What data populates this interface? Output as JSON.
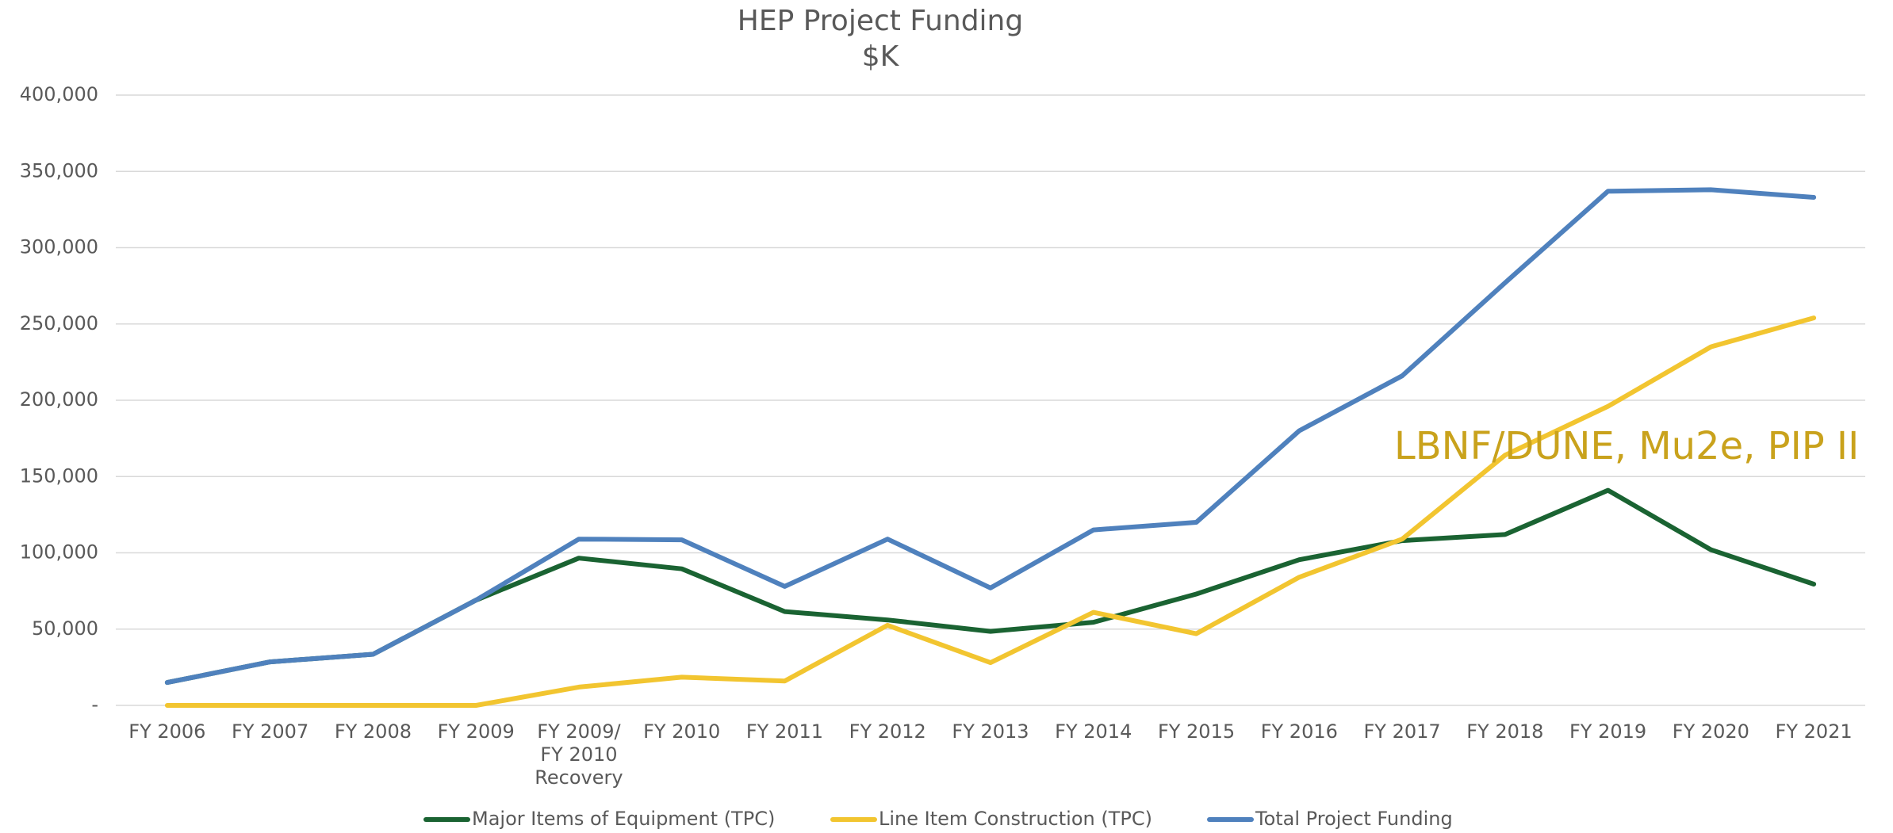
{
  "chart_data": {
    "type": "line",
    "title": "HEP Project Funding",
    "subtitle": "$K",
    "categories": [
      "FY 2006",
      "FY 2007",
      "FY 2008",
      "FY 2009",
      "FY 2009/ FY 2010 Recovery",
      "FY 2010",
      "FY 2011",
      "FY 2012",
      "FY 2013",
      "FY 2014",
      "FY 2015",
      "FY 2016",
      "FY 2017",
      "FY 2018",
      "FY 2019",
      "FY 2020",
      "FY 2021"
    ],
    "series": [
      {
        "name": "Major Items of Equipment (TPC)",
        "color": "#1a6332",
        "values": [
          15000,
          28500,
          33500,
          69000,
          96500,
          89500,
          61500,
          56000,
          48500,
          54500,
          73000,
          95500,
          108000,
          112000,
          141000,
          102000,
          79500
        ]
      },
      {
        "name": "Line Item Construction (TPC)",
        "color": "#f2c530",
        "values": [
          0,
          0,
          0,
          0,
          12000,
          18500,
          16000,
          52500,
          28000,
          61000,
          47000,
          84000,
          109000,
          164000,
          196000,
          235000,
          254000
        ]
      },
      {
        "name": "Total Project Funding",
        "color": "#4f81bd",
        "values": [
          15000,
          28500,
          33500,
          69000,
          109000,
          108500,
          78000,
          109000,
          77000,
          115000,
          120000,
          180000,
          216000,
          277000,
          337000,
          338000,
          333000
        ]
      }
    ],
    "ylim": [
      0,
      400000
    ],
    "yticks": [
      {
        "value": 0,
        "label": "-"
      },
      {
        "value": 50000,
        "label": "50,000"
      },
      {
        "value": 100000,
        "label": "100,000"
      },
      {
        "value": 150000,
        "label": "150,000"
      },
      {
        "value": 200000,
        "label": "200,000"
      },
      {
        "value": 250000,
        "label": "250,000"
      },
      {
        "value": 300000,
        "label": "300,000"
      },
      {
        "value": 350000,
        "label": "350,000"
      },
      {
        "value": 400000,
        "label": "400,000"
      }
    ],
    "grid": true,
    "legend": "bottom",
    "annotation": {
      "text": "LBNF/DUNE, Mu2e, PIP II",
      "color": "#c9a21c"
    }
  }
}
